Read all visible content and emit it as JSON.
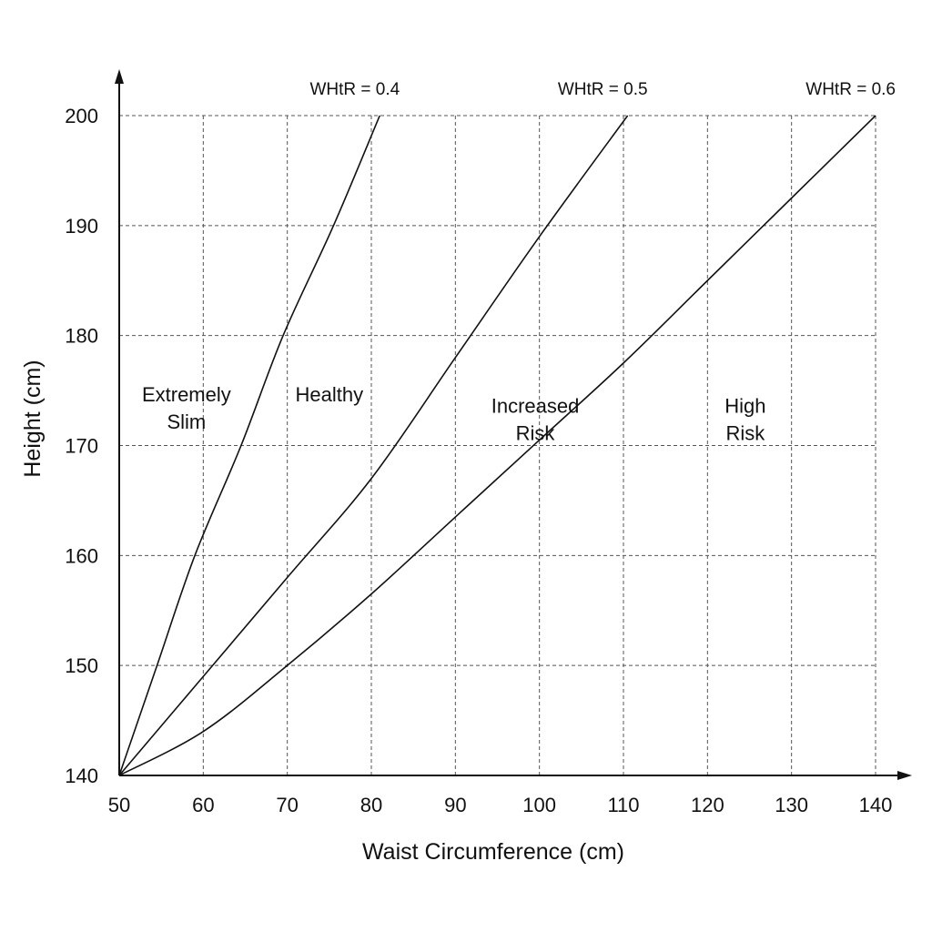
{
  "chart_data": {
    "type": "line",
    "xlabel": "Waist Circumference (cm)",
    "ylabel": "Height (cm)",
    "xlim": [
      50,
      140
    ],
    "ylim": [
      140,
      200
    ],
    "x_ticks": [
      50,
      60,
      70,
      80,
      90,
      100,
      110,
      120,
      130,
      140
    ],
    "y_ticks": [
      140,
      150,
      160,
      170,
      180,
      190,
      200
    ],
    "grid": true,
    "series": [
      {
        "name": "WHtR = 0.4",
        "points": [
          [
            50,
            140
          ],
          [
            54.5,
            150
          ],
          [
            59,
            160
          ],
          [
            64.5,
            170
          ],
          [
            69.5,
            180
          ],
          [
            75.5,
            190
          ],
          [
            81,
            200
          ]
        ]
      },
      {
        "name": "WHtR = 0.5",
        "points": [
          [
            50,
            140
          ],
          [
            60,
            149
          ],
          [
            70,
            158
          ],
          [
            80,
            167
          ],
          [
            90,
            178
          ],
          [
            100,
            189
          ],
          [
            110.5,
            200
          ]
        ]
      },
      {
        "name": "WHtR = 0.6",
        "points": [
          [
            50,
            140
          ],
          [
            60,
            144
          ],
          [
            70,
            150
          ],
          [
            80,
            156.5
          ],
          [
            90,
            163.5
          ],
          [
            100,
            170.5
          ],
          [
            110,
            177.5
          ],
          [
            120,
            185
          ],
          [
            130,
            192.5
          ],
          [
            140,
            200
          ]
        ]
      }
    ],
    "zones": [
      {
        "lines": [
          "Extremely",
          "Slim"
        ],
        "x": 58,
        "y": 174
      },
      {
        "lines": [
          "Healthy"
        ],
        "x": 75,
        "y": 174
      },
      {
        "lines": [
          "Increased",
          "Risk"
        ],
        "x": 99.5,
        "y": 173
      },
      {
        "lines": [
          "High",
          "Risk"
        ],
        "x": 124.5,
        "y": 173
      }
    ]
  }
}
